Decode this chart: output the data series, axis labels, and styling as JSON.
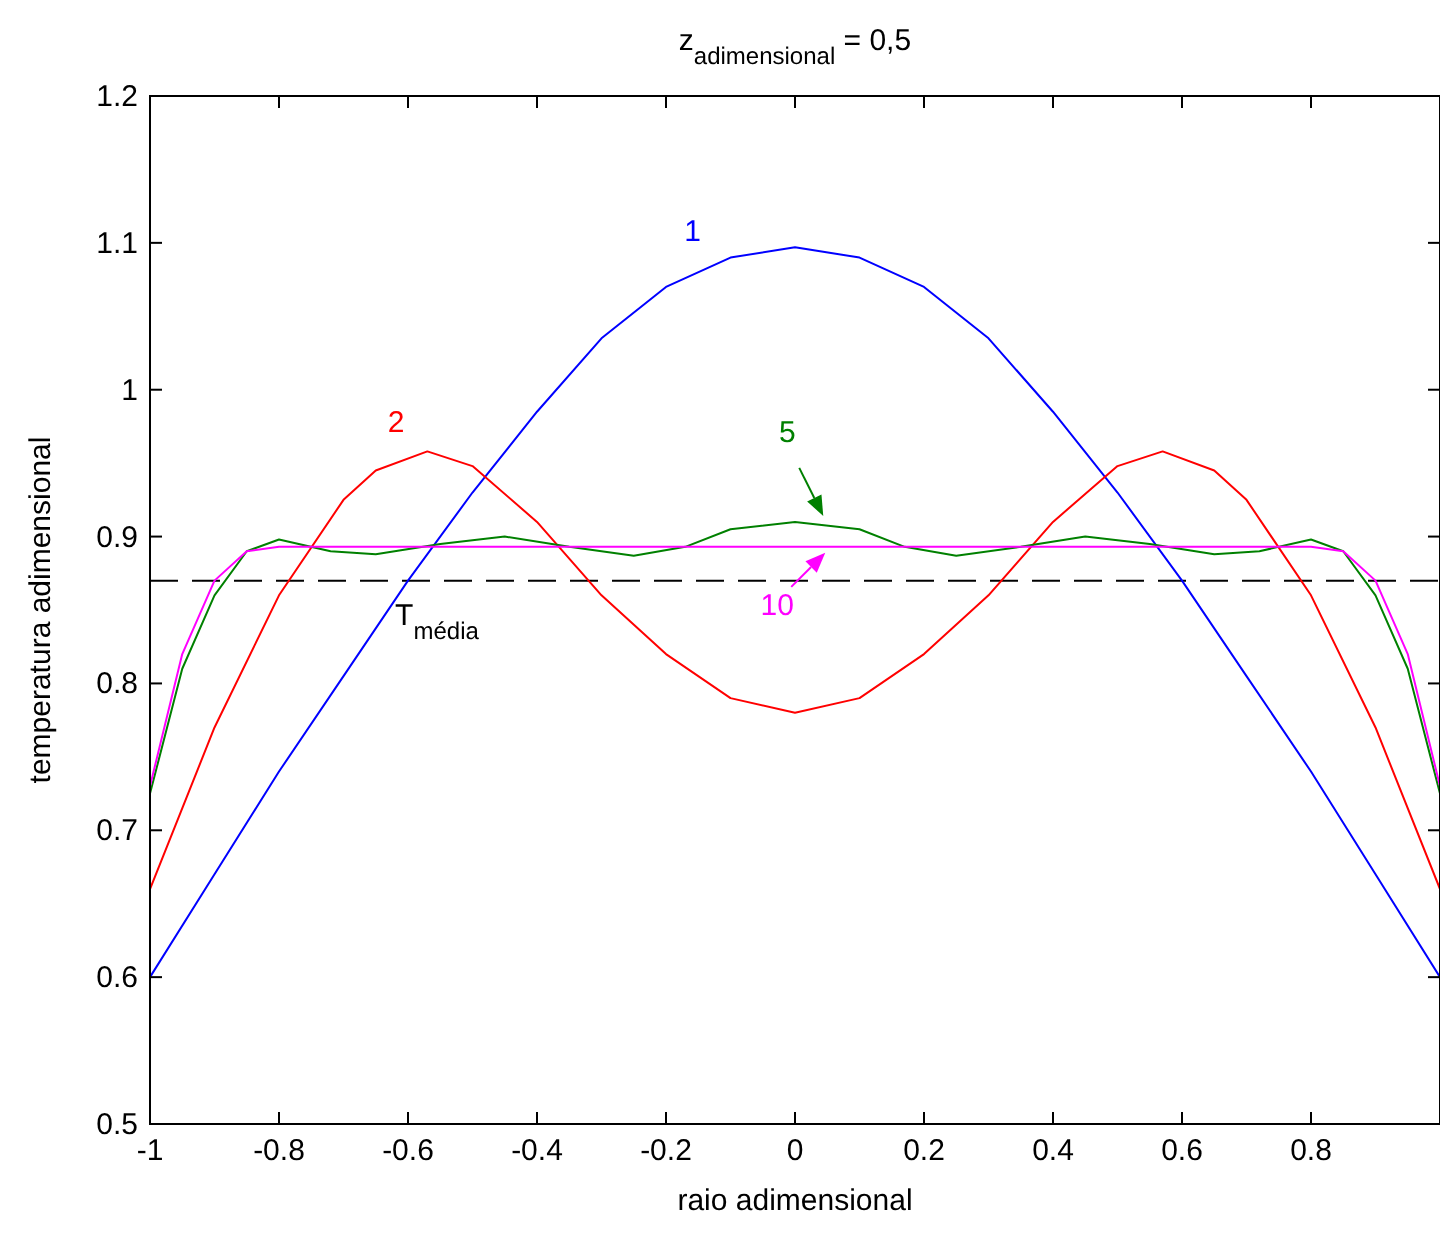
{
  "chart_data": {
    "type": "line",
    "title": "z$_{adimensional}$ = 0,5",
    "xlabel": "raio adimensional",
    "ylabel": "temperatura adimensional",
    "xlim": [
      -1,
      1
    ],
    "ylim": [
      0.5,
      1.2
    ],
    "xticks": [
      -1,
      -0.8,
      -0.6,
      -0.4,
      -0.2,
      0,
      0.2,
      0.4,
      0.6,
      0.8
    ],
    "yticks": [
      0.5,
      0.6,
      0.7,
      0.8,
      0.9,
      1,
      1.1,
      1.2
    ],
    "grid": false,
    "series": [
      {
        "color": "#0000ff",
        "x": [
          -1,
          -0.9,
          -0.8,
          -0.7,
          -0.6,
          -0.5,
          -0.4,
          -0.3,
          -0.2,
          -0.1,
          0,
          0.1,
          0.2,
          0.3,
          0.4,
          0.5,
          0.6,
          0.7,
          0.8,
          0.9,
          1
        ],
        "values": [
          0.6,
          0.67,
          0.74,
          0.805,
          0.87,
          0.93,
          0.985,
          1.035,
          1.07,
          1.09,
          1.097,
          1.09,
          1.07,
          1.035,
          0.985,
          0.93,
          0.87,
          0.805,
          0.74,
          0.67,
          0.6
        ]
      },
      {
        "color": "#ff0000",
        "x": [
          -1,
          -0.9,
          -0.8,
          -0.7,
          -0.65,
          -0.57,
          -0.5,
          -0.4,
          -0.3,
          -0.2,
          -0.1,
          0,
          0.1,
          0.2,
          0.3,
          0.4,
          0.5,
          0.57,
          0.65,
          0.7,
          0.8,
          0.9,
          1
        ],
        "values": [
          0.66,
          0.77,
          0.86,
          0.925,
          0.945,
          0.958,
          0.948,
          0.91,
          0.86,
          0.82,
          0.79,
          0.78,
          0.79,
          0.82,
          0.86,
          0.91,
          0.948,
          0.958,
          0.945,
          0.925,
          0.86,
          0.77,
          0.66
        ]
      },
      {
        "color": "#008000",
        "x": [
          -1,
          -0.95,
          -0.9,
          -0.85,
          -0.8,
          -0.72,
          -0.65,
          -0.55,
          -0.45,
          -0.35,
          -0.25,
          -0.17,
          -0.1,
          0,
          0.1,
          0.17,
          0.25,
          0.35,
          0.45,
          0.55,
          0.65,
          0.72,
          0.8,
          0.85,
          0.9,
          0.95,
          1
        ],
        "values": [
          0.725,
          0.81,
          0.86,
          0.89,
          0.898,
          0.89,
          0.888,
          0.895,
          0.9,
          0.893,
          0.887,
          0.893,
          0.905,
          0.91,
          0.905,
          0.893,
          0.887,
          0.893,
          0.9,
          0.895,
          0.888,
          0.89,
          0.898,
          0.89,
          0.86,
          0.81,
          0.725
        ]
      },
      {
        "color": "#ff00ff",
        "x": [
          -1,
          -0.95,
          -0.9,
          -0.85,
          -0.8,
          0,
          0.8,
          0.85,
          0.9,
          0.95,
          1
        ],
        "values": [
          0.73,
          0.82,
          0.87,
          0.89,
          0.893,
          0.893,
          0.893,
          0.89,
          0.87,
          0.82,
          0.73
        ]
      }
    ],
    "ref_lines": [
      {
        "axis": "y",
        "value": 0.87,
        "label": "T$_{média}$",
        "color": "#000000",
        "line_style": "dashed"
      }
    ],
    "annotations": [
      {
        "text": "1",
        "x": -0.14,
        "y": 1.085
      },
      {
        "text": "2",
        "x": -0.6,
        "y": 0.955
      },
      {
        "text": "5",
        "x": 0.05,
        "y": 0.91
      },
      {
        "text": "10",
        "x": 0.05,
        "y": 0.893
      }
    ]
  }
}
